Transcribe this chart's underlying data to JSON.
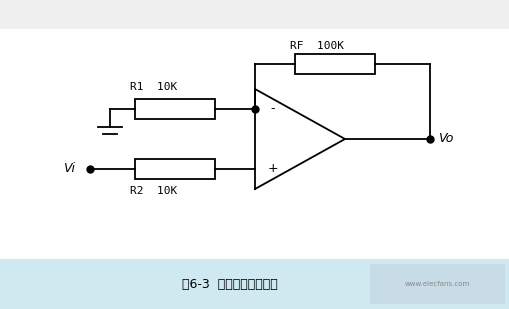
{
  "title": "图6-3  同相比例放大电路",
  "background_color": "#f0f0f0",
  "circuit_bg": "#ffffff",
  "line_color": "#000000",
  "fig_width": 5.1,
  "fig_height": 3.09,
  "dpi": 100,
  "rf_label": "RF  100K",
  "r1_label": "R1  10K",
  "r2_label": "R2  10K",
  "vi_label": "Vi",
  "vo_label": "Vo",
  "minus_label": "-",
  "plus_label": "+"
}
